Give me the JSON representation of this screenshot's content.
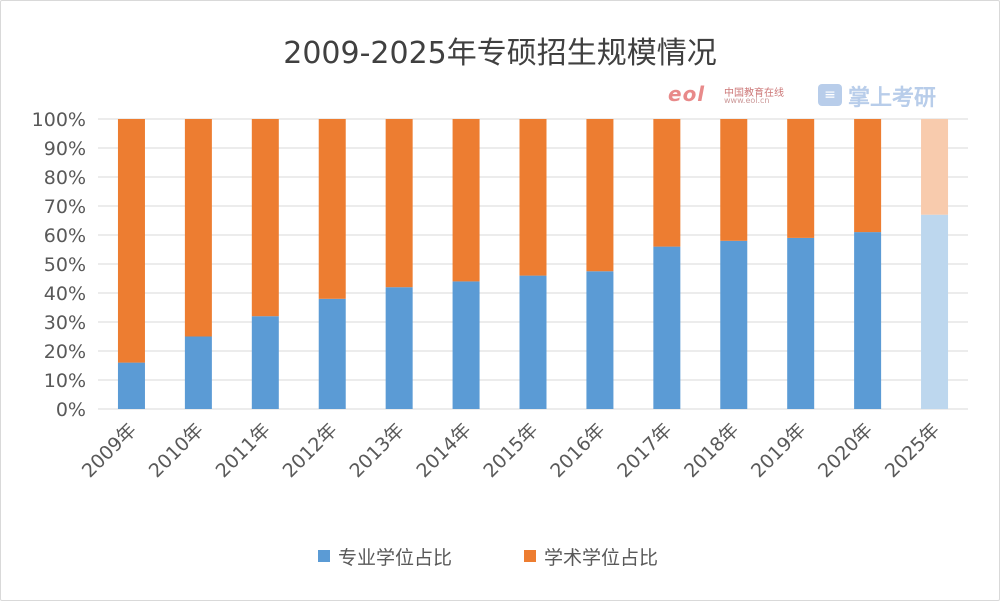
{
  "colors": {
    "professional": "#5b9bd5",
    "academic": "#ed7d31",
    "professional_light": "#bdd7ee",
    "academic_light": "#f8cbad",
    "grid": "#d9d9d9",
    "axis_text": "#595959"
  },
  "watermarks": {
    "eol_text": "eol",
    "eol_cn": "中国教育在线",
    "eol_url": "www.eol.cn",
    "zs_icon": "book-icon",
    "zs_text": "掌上考研"
  },
  "chart_data": {
    "type": "bar",
    "stacked": true,
    "percent": true,
    "title": "2009-2025年专硕招生规模情况",
    "categories": [
      "2009年",
      "2010年",
      "2011年",
      "2012年",
      "2013年",
      "2014年",
      "2015年",
      "2016年",
      "2017年",
      "2018年",
      "2019年",
      "2020年",
      "2025年"
    ],
    "projected": [
      false,
      false,
      false,
      false,
      false,
      false,
      false,
      false,
      false,
      false,
      false,
      false,
      true
    ],
    "series": [
      {
        "name": "专业学位占比",
        "color": "#5b9bd5",
        "values": [
          16,
          25,
          32,
          38,
          42,
          44,
          46,
          47.5,
          56,
          58,
          59,
          61,
          67
        ]
      },
      {
        "name": "学术学位占比",
        "color": "#ed7d31",
        "values": [
          84,
          75,
          68,
          62,
          58,
          56,
          54,
          52.5,
          44,
          42,
          41,
          39,
          33
        ]
      }
    ],
    "yticks": [
      "0%",
      "10%",
      "20%",
      "30%",
      "40%",
      "50%",
      "60%",
      "70%",
      "80%",
      "90%",
      "100%"
    ],
    "ylim": [
      0,
      100
    ],
    "grid": true,
    "legend": "bottom"
  }
}
